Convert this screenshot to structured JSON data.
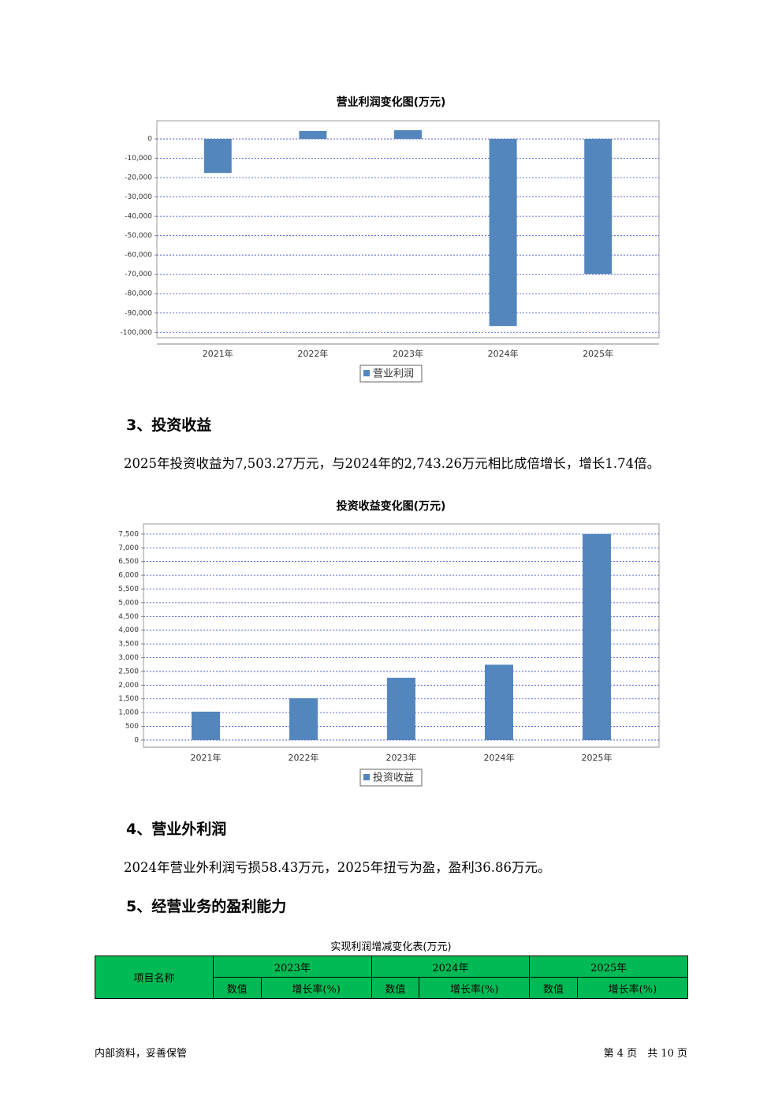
{
  "chart_data": [
    {
      "type": "bar",
      "title": "营业利润变化图(万元)",
      "categories": [
        "2021年",
        "2022年",
        "2023年",
        "2024年",
        "2025年"
      ],
      "series": [
        {
          "name": "营业利润",
          "color": "#5386bd",
          "values": [
            -17600,
            4100,
            4500,
            -96700,
            -69800
          ]
        }
      ],
      "ylim": [
        -106000,
        9400
      ],
      "yticks": [
        0,
        {
          "value": -10000,
          "label": "-10,000"
        },
        {
          "value": -20000,
          "label": "-20,000"
        },
        {
          "value": -30000,
          "label": "-30,000"
        },
        {
          "value": -40000,
          "label": "-40,000"
        },
        {
          "value": -50000,
          "label": "-50,000"
        },
        {
          "value": -60000,
          "label": "-60,000"
        },
        {
          "value": -70000,
          "label": "-70,000"
        },
        {
          "value": -80000,
          "label": "-80,000"
        },
        {
          "value": -90000,
          "label": "-90,000"
        },
        {
          "value": -100000,
          "label": "-100,000"
        }
      ],
      "grid": true,
      "legend": "bottom"
    },
    {
      "type": "bar",
      "title": "投资收益变化图(万元)",
      "categories": [
        "2021年",
        "2022年",
        "2023年",
        "2024年",
        "2025年"
      ],
      "series": [
        {
          "name": "投资收益",
          "color": "#5386bd",
          "values": [
            1034,
            1523,
            2270,
            2743.26,
            7503.27
          ]
        }
      ],
      "ylim": [
        -260,
        7870
      ],
      "yticks": [
        0,
        500,
        {
          "value": 1000,
          "label": "1,000"
        },
        {
          "value": 1500,
          "label": "1,500"
        },
        {
          "value": 2000,
          "label": "2,000"
        },
        {
          "value": 2500,
          "label": "2,500"
        },
        {
          "value": 3000,
          "label": "3,000"
        },
        {
          "value": 3500,
          "label": "3,500"
        },
        {
          "value": 4000,
          "label": "4,000"
        },
        {
          "value": 4500,
          "label": "4,500"
        },
        {
          "value": 5000,
          "label": "5,000"
        },
        {
          "value": 5500,
          "label": "5,500"
        },
        {
          "value": 6000,
          "label": "6,000"
        },
        {
          "value": 6500,
          "label": "6,500"
        },
        {
          "value": 7000,
          "label": "7,000"
        },
        {
          "value": 7500,
          "label": "7,500"
        }
      ],
      "grid": true,
      "legend": "bottom"
    }
  ],
  "sections": [
    {
      "heading": "3、投资收益",
      "text": "2025年投资收益为7,503.27万元，与2024年的2,743.26万元相比成倍增长，增长1.74倍。"
    },
    {
      "heading": "4、营业外利润",
      "text": "2024年营业外利润亏损58.43万元，2025年扭亏为盈，盈利36.86万元。"
    },
    {
      "heading": "5、经营业务的盈利能力"
    }
  ],
  "table": {
    "title": "实现利润增减变化表(万元)",
    "header": [
      "项目名称",
      "2023年",
      "2024年",
      "2025年"
    ],
    "subheader": [
      "数值",
      "增长率(%)",
      "数值",
      "增长率(%)",
      "数值",
      "增长率(%)"
    ]
  },
  "footer": {
    "left": "内部资料，妥善保管",
    "right": "第 4 页　共 10 页"
  }
}
